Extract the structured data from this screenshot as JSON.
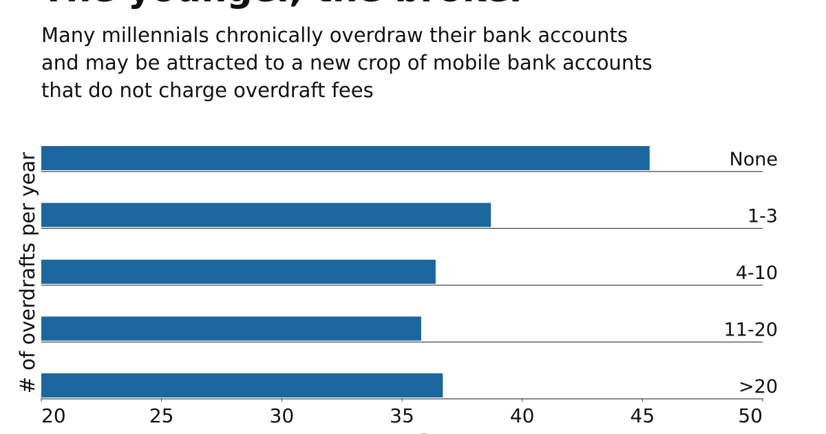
{
  "chart_data": {
    "type": "hbar",
    "title": "The younger, the broker",
    "subtitle": [
      "Many millennials chronically overdraw their bank accounts",
      "and may be attracted to a new crop of mobile bank accounts",
      "that do not charge overdraft fees"
    ],
    "ylabel": "# of overdrafts per year",
    "xlabel": "Average age of consumer",
    "categories": [
      "None",
      "1-3",
      "4-10",
      "11-20",
      ">20"
    ],
    "values": [
      45.3,
      38.7,
      36.4,
      35.8,
      36.7
    ],
    "color": "#1c679f",
    "xlim": [
      20,
      50
    ],
    "xticks": [
      20,
      25,
      30,
      35,
      40,
      45,
      50
    ]
  }
}
